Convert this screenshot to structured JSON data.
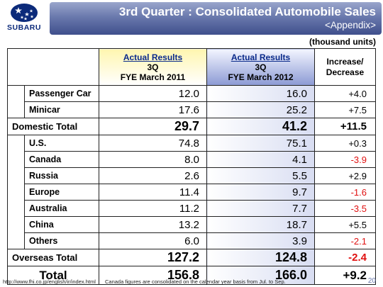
{
  "brand": {
    "name": "SUBARU",
    "color": "#0b2a7a"
  },
  "header": {
    "title": "3rd Quarter : Consolidated Automobile Sales",
    "subtitle": "<Appendix>"
  },
  "units_note": "(thousand units)",
  "columns": {
    "col_2011": {
      "line1": "Actual Results",
      "line2": "3Q",
      "line3": "FYE March 2011"
    },
    "col_2012": {
      "line1": "Actual Results",
      "line2": "3Q",
      "line3": "FYE March 2012"
    },
    "col_inc": {
      "line1": "Increase/",
      "line2": "Decrease"
    }
  },
  "rows": {
    "passenger_car": {
      "label": "Passenger Car",
      "v2011": "12.0",
      "v2012": "16.0",
      "inc": "+4.0"
    },
    "minicar": {
      "label": "Minicar",
      "v2011": "17.6",
      "v2012": "25.2",
      "inc": "+7.5"
    },
    "domestic_total": {
      "label": "Domestic Total",
      "v2011": "29.7",
      "v2012": "41.2",
      "inc": "+11.5"
    },
    "us": {
      "label": "U.S.",
      "v2011": "74.8",
      "v2012": "75.1",
      "inc": "+0.3"
    },
    "canada": {
      "label": "Canada",
      "v2011": "8.0",
      "v2012": "4.1",
      "inc": "-3.9"
    },
    "russia": {
      "label": "Russia",
      "v2011": "2.6",
      "v2012": "5.5",
      "inc": "+2.9"
    },
    "europe": {
      "label": "Europe",
      "v2011": "11.4",
      "v2012": "9.7",
      "inc": "-1.6"
    },
    "australia": {
      "label": "Australia",
      "v2011": "11.2",
      "v2012": "7.7",
      "inc": "-3.5"
    },
    "china": {
      "label": "China",
      "v2011": "13.2",
      "v2012": "18.7",
      "inc": "+5.5"
    },
    "others": {
      "label": "Others",
      "v2011": "6.0",
      "v2012": "3.9",
      "inc": "-2.1"
    },
    "overseas_total": {
      "label": "Overseas Total",
      "v2011": "127.2",
      "v2012": "124.8",
      "inc": "-2.4"
    },
    "total": {
      "label": "Total",
      "v2011": "156.8",
      "v2012": "166.0",
      "inc": "+9.2"
    }
  },
  "footer": {
    "url": "http://www.fhi.co.jp/english/ir/index.html",
    "note": "Canada figures are consolidated on the calendar year basis from Jul. to Sep.",
    "page": "20"
  },
  "colors": {
    "negative": "#e01010",
    "title_bar": "#5a6aa3",
    "col_2011_tint": "#fff6b0",
    "col_2012_tint": "#8c9ad4"
  }
}
